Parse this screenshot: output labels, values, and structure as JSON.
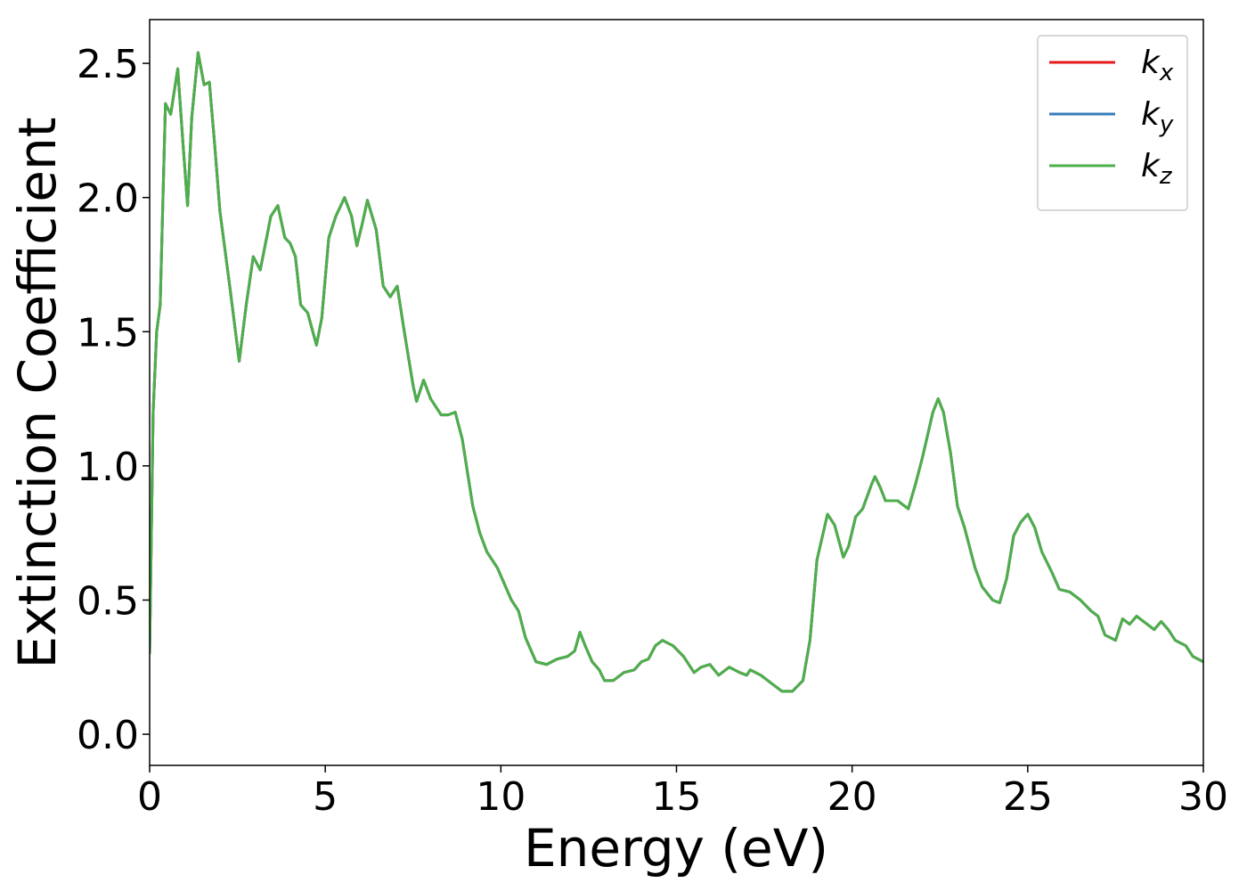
{
  "chart_data": {
    "type": "line",
    "xlabel": "Energy (eV)",
    "ylabel": "Extinction Coefficient",
    "xlim": [
      0,
      30
    ],
    "ylim": [
      -0.116,
      2.663
    ],
    "xticks": [
      0,
      5,
      10,
      15,
      20,
      25,
      30
    ],
    "yticks": [
      {
        "value": 0,
        "label": "0.0"
      },
      0.5,
      {
        "value": 1,
        "label": "1.0"
      },
      1.5,
      {
        "value": 2,
        "label": "2.0"
      },
      2.5
    ],
    "legend": "upper right",
    "x": [
      0,
      0.1,
      0.2,
      0.3,
      0.45,
      0.6,
      0.8,
      0.95,
      1.08,
      1.2,
      1.38,
      1.55,
      1.7,
      1.85,
      2.0,
      2.3,
      2.55,
      2.75,
      2.95,
      3.15,
      3.45,
      3.65,
      3.85,
      4.0,
      4.15,
      4.3,
      4.5,
      4.75,
      4.9,
      5.1,
      5.3,
      5.55,
      5.75,
      5.9,
      6.05,
      6.2,
      6.45,
      6.65,
      6.85,
      7.05,
      7.25,
      7.5,
      7.6,
      7.8,
      8.0,
      8.3,
      8.5,
      8.7,
      8.9,
      9.2,
      9.4,
      9.6,
      9.9,
      10.1,
      10.3,
      10.5,
      10.7,
      11.0,
      11.3,
      11.6,
      11.9,
      12.1,
      12.25,
      12.4,
      12.6,
      12.8,
      12.95,
      13.2,
      13.5,
      13.8,
      14.0,
      14.2,
      14.4,
      14.6,
      14.9,
      15.2,
      15.5,
      15.7,
      15.95,
      16.2,
      16.5,
      16.8,
      17.0,
      17.1,
      17.4,
      17.7,
      18.0,
      18.3,
      18.6,
      18.8,
      19.0,
      19.3,
      19.5,
      19.75,
      19.9,
      20.1,
      20.3,
      20.55,
      20.65,
      20.8,
      20.95,
      21.3,
      21.6,
      21.8,
      22.0,
      22.3,
      22.45,
      22.6,
      22.8,
      23.0,
      23.2,
      23.5,
      23.7,
      24.0,
      24.2,
      24.4,
      24.6,
      24.8,
      25.0,
      25.2,
      25.4,
      25.7,
      25.9,
      26.2,
      26.5,
      26.8,
      27.0,
      27.2,
      27.5,
      27.7,
      27.9,
      28.1,
      28.3,
      28.6,
      28.8,
      29.0,
      29.2,
      29.5,
      29.7,
      30.0
    ],
    "series": [
      {
        "name": "kx",
        "color": "#e41a1c",
        "values": [
          0.3,
          1.2,
          1.5,
          1.6,
          2.35,
          2.31,
          2.48,
          2.2,
          1.97,
          2.3,
          2.54,
          2.42,
          2.43,
          2.2,
          1.95,
          1.65,
          1.39,
          1.6,
          1.78,
          1.73,
          1.93,
          1.97,
          1.85,
          1.83,
          1.78,
          1.6,
          1.57,
          1.45,
          1.55,
          1.85,
          1.93,
          2.0,
          1.93,
          1.82,
          1.9,
          1.99,
          1.88,
          1.67,
          1.63,
          1.67,
          1.5,
          1.3,
          1.24,
          1.32,
          1.25,
          1.19,
          1.19,
          1.2,
          1.1,
          0.85,
          0.75,
          0.68,
          0.62,
          0.56,
          0.5,
          0.46,
          0.36,
          0.27,
          0.26,
          0.28,
          0.29,
          0.31,
          0.38,
          0.33,
          0.27,
          0.24,
          0.2,
          0.2,
          0.23,
          0.24,
          0.27,
          0.28,
          0.33,
          0.35,
          0.33,
          0.29,
          0.23,
          0.25,
          0.26,
          0.22,
          0.25,
          0.23,
          0.22,
          0.24,
          0.22,
          0.19,
          0.16,
          0.16,
          0.2,
          0.35,
          0.65,
          0.82,
          0.78,
          0.66,
          0.7,
          0.81,
          0.84,
          0.93,
          0.96,
          0.92,
          0.87,
          0.87,
          0.84,
          0.93,
          1.03,
          1.2,
          1.25,
          1.2,
          1.05,
          0.85,
          0.77,
          0.62,
          0.55,
          0.5,
          0.49,
          0.58,
          0.74,
          0.79,
          0.82,
          0.77,
          0.68,
          0.6,
          0.54,
          0.53,
          0.5,
          0.46,
          0.44,
          0.37,
          0.35,
          0.43,
          0.41,
          0.44,
          0.42,
          0.39,
          0.42,
          0.39,
          0.35,
          0.33,
          0.29,
          0.27
        ]
      },
      {
        "name": "ky",
        "color": "#377eb8",
        "values": [
          0.3,
          1.2,
          1.5,
          1.6,
          2.35,
          2.31,
          2.48,
          2.2,
          1.97,
          2.3,
          2.54,
          2.42,
          2.43,
          2.2,
          1.95,
          1.65,
          1.39,
          1.6,
          1.78,
          1.73,
          1.93,
          1.97,
          1.85,
          1.83,
          1.78,
          1.6,
          1.57,
          1.45,
          1.55,
          1.85,
          1.93,
          2.0,
          1.93,
          1.82,
          1.9,
          1.99,
          1.88,
          1.67,
          1.63,
          1.67,
          1.5,
          1.3,
          1.24,
          1.32,
          1.25,
          1.19,
          1.19,
          1.2,
          1.1,
          0.85,
          0.75,
          0.68,
          0.62,
          0.56,
          0.5,
          0.46,
          0.36,
          0.27,
          0.26,
          0.28,
          0.29,
          0.31,
          0.38,
          0.33,
          0.27,
          0.24,
          0.2,
          0.2,
          0.23,
          0.24,
          0.27,
          0.28,
          0.33,
          0.35,
          0.33,
          0.29,
          0.23,
          0.25,
          0.26,
          0.22,
          0.25,
          0.23,
          0.22,
          0.24,
          0.22,
          0.19,
          0.16,
          0.16,
          0.2,
          0.35,
          0.65,
          0.82,
          0.78,
          0.66,
          0.7,
          0.81,
          0.84,
          0.93,
          0.96,
          0.92,
          0.87,
          0.87,
          0.84,
          0.93,
          1.03,
          1.2,
          1.25,
          1.2,
          1.05,
          0.85,
          0.77,
          0.62,
          0.55,
          0.5,
          0.49,
          0.58,
          0.74,
          0.79,
          0.82,
          0.77,
          0.68,
          0.6,
          0.54,
          0.53,
          0.5,
          0.46,
          0.44,
          0.37,
          0.35,
          0.43,
          0.41,
          0.44,
          0.42,
          0.39,
          0.42,
          0.39,
          0.35,
          0.33,
          0.29,
          0.27
        ]
      },
      {
        "name": "kz",
        "color": "#4daf4a",
        "values": [
          0.3,
          1.2,
          1.5,
          1.6,
          2.35,
          2.31,
          2.48,
          2.2,
          1.97,
          2.3,
          2.54,
          2.42,
          2.43,
          2.2,
          1.95,
          1.65,
          1.39,
          1.6,
          1.78,
          1.73,
          1.93,
          1.97,
          1.85,
          1.83,
          1.78,
          1.6,
          1.57,
          1.45,
          1.55,
          1.85,
          1.93,
          2.0,
          1.93,
          1.82,
          1.9,
          1.99,
          1.88,
          1.67,
          1.63,
          1.67,
          1.5,
          1.3,
          1.24,
          1.32,
          1.25,
          1.19,
          1.19,
          1.2,
          1.1,
          0.85,
          0.75,
          0.68,
          0.62,
          0.56,
          0.5,
          0.46,
          0.36,
          0.27,
          0.26,
          0.28,
          0.29,
          0.31,
          0.38,
          0.33,
          0.27,
          0.24,
          0.2,
          0.2,
          0.23,
          0.24,
          0.27,
          0.28,
          0.33,
          0.35,
          0.33,
          0.29,
          0.23,
          0.25,
          0.26,
          0.22,
          0.25,
          0.23,
          0.22,
          0.24,
          0.22,
          0.19,
          0.16,
          0.16,
          0.2,
          0.35,
          0.65,
          0.82,
          0.78,
          0.66,
          0.7,
          0.81,
          0.84,
          0.93,
          0.96,
          0.92,
          0.87,
          0.87,
          0.84,
          0.93,
          1.03,
          1.2,
          1.25,
          1.2,
          1.05,
          0.85,
          0.77,
          0.62,
          0.55,
          0.5,
          0.49,
          0.58,
          0.74,
          0.79,
          0.82,
          0.77,
          0.68,
          0.6,
          0.54,
          0.53,
          0.5,
          0.46,
          0.44,
          0.37,
          0.35,
          0.43,
          0.41,
          0.44,
          0.42,
          0.39,
          0.42,
          0.39,
          0.35,
          0.33,
          0.29,
          0.27
        ]
      }
    ]
  }
}
